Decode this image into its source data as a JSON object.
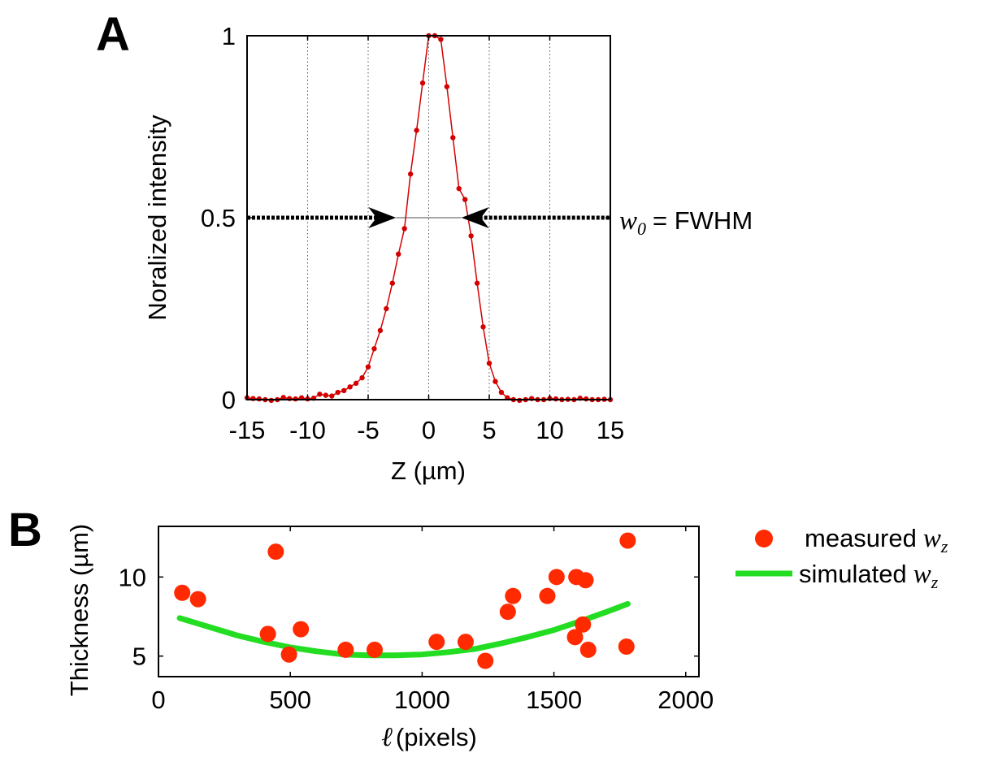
{
  "panels": {
    "a_label": "A",
    "b_label": "B"
  },
  "chart_data": [
    {
      "type": "line",
      "panel": "A",
      "xlabel": "Z (µm)",
      "ylabel": "Noralized intensity",
      "xlim": [
        -15,
        15
      ],
      "ylim": [
        0,
        1
      ],
      "xticks": [
        "-15",
        "-10",
        "-5",
        "0",
        "5",
        "10",
        "15"
      ],
      "yticks": [
        "0",
        "0.5",
        "1"
      ],
      "vertical_gridlines_at": [
        -10,
        -5,
        0,
        5,
        10
      ],
      "grid_style": "dotted",
      "color": "#d40000",
      "series": [
        {
          "x": [
            -15,
            -14.5,
            -14,
            -13.5,
            -13,
            -12.5,
            -12,
            -11.5,
            -11,
            -10.5,
            -10,
            -9.5,
            -9,
            -8.5,
            -8,
            -7.5,
            -7,
            -6.5,
            -6,
            -5.5,
            -5,
            -4.5,
            -4,
            -3.5,
            -3,
            -2.5,
            -2,
            -1.5,
            -1,
            -0.5,
            0,
            0.5,
            1,
            1.5,
            2,
            2.5,
            3,
            3.5,
            4,
            4.5,
            5,
            5.5,
            6,
            6.5,
            7,
            7.5,
            8,
            8.5,
            9,
            9.5,
            10,
            10.5,
            11,
            11.5,
            12,
            12.5,
            13,
            13.5,
            14,
            14.5,
            15
          ],
          "y": [
            0.005,
            0.003,
            0.002,
            0.0,
            -0.002,
            0.0,
            0.006,
            0.003,
            0.002,
            0.005,
            0.002,
            0.004,
            0.015,
            0.012,
            0.01,
            0.02,
            0.025,
            0.035,
            0.045,
            0.06,
            0.09,
            0.14,
            0.19,
            0.25,
            0.32,
            0.4,
            0.47,
            0.62,
            0.74,
            0.87,
            1.0,
            1.0,
            0.99,
            0.86,
            0.72,
            0.58,
            0.55,
            0.45,
            0.32,
            0.2,
            0.1,
            0.05,
            0.02,
            0.005,
            0.0,
            -0.002,
            0.0,
            0.003,
            0.0,
            0.0,
            0.003,
            0.002,
            0.0,
            0.001,
            0.0,
            0.004,
            0.002,
            0.0,
            0.0,
            0.001,
            0.0
          ]
        }
      ],
      "annotation": {
        "y": 0.5,
        "left_arrow_x": -2.7,
        "right_arrow_x": 2.7,
        "symbol": "w",
        "subscript": "0",
        "text": "= FWHM"
      }
    },
    {
      "type": "scatter",
      "panel": "B",
      "xlabel_symbol": "ℓ",
      "xlabel": "(pixels)",
      "ylabel": "Thickness (µm)",
      "xlim": [
        0,
        2050
      ],
      "ylim": [
        3.7,
        13.2
      ],
      "xticks": [
        0,
        500,
        1000,
        1500,
        2000
      ],
      "yticks": [
        5,
        10
      ],
      "series": [
        {
          "name": "measured",
          "name_symbol": "w",
          "name_subscript": "z",
          "kind": "scatter",
          "color": "#ff2a00",
          "points": [
            [
              90,
              9.0
            ],
            [
              150,
              8.6
            ],
            [
              415,
              6.4
            ],
            [
              445,
              11.6
            ],
            [
              495,
              5.1
            ],
            [
              540,
              6.7
            ],
            [
              710,
              5.4
            ],
            [
              820,
              5.4
            ],
            [
              1055,
              5.9
            ],
            [
              1165,
              5.9
            ],
            [
              1240,
              4.7
            ],
            [
              1325,
              7.8
            ],
            [
              1345,
              8.8
            ],
            [
              1475,
              8.8
            ],
            [
              1510,
              10.0
            ],
            [
              1580,
              6.2
            ],
            [
              1585,
              10.0
            ],
            [
              1610,
              7.0
            ],
            [
              1620,
              9.8
            ],
            [
              1630,
              5.4
            ],
            [
              1775,
              5.6
            ],
            [
              1780,
              12.3
            ]
          ]
        },
        {
          "name": "simulated",
          "name_symbol": "w",
          "name_subscript": "z",
          "kind": "line",
          "color": "#22dd22",
          "x": [
            80,
            200,
            300,
            400,
            500,
            600,
            700,
            800,
            900,
            1000,
            1100,
            1200,
            1300,
            1400,
            1500,
            1600,
            1700,
            1780
          ],
          "y": [
            7.4,
            6.8,
            6.3,
            5.9,
            5.55,
            5.3,
            5.1,
            5.05,
            5.05,
            5.1,
            5.25,
            5.45,
            5.8,
            6.2,
            6.65,
            7.2,
            7.8,
            8.3
          ]
        }
      ]
    }
  ]
}
